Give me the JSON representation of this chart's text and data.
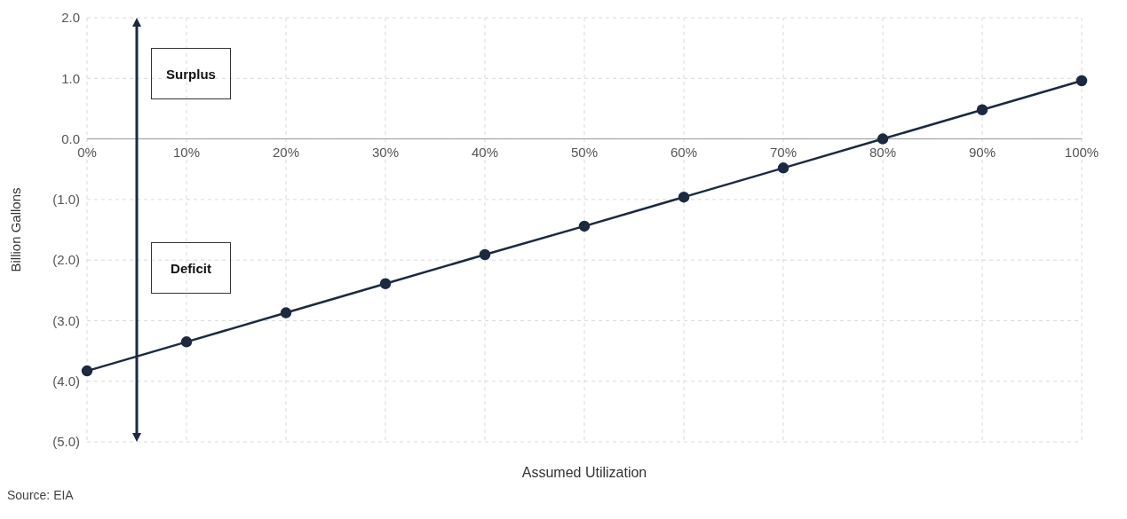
{
  "chart_data": {
    "type": "line",
    "xlabel": "Assumed Utilization",
    "ylabel": "Billion Gallons",
    "categories": [
      "0%",
      "10%",
      "20%",
      "30%",
      "40%",
      "50%",
      "60%",
      "70%",
      "80%",
      "90%",
      "100%"
    ],
    "series": [
      {
        "color": "#1b2a41",
        "values": [
          -3.83,
          -3.35,
          -2.87,
          -2.39,
          -1.91,
          -1.44,
          -0.96,
          -0.48,
          0,
          0.48,
          0.96
        ]
      }
    ],
    "ylim": [
      -5,
      2
    ],
    "yticks": [
      {
        "value": -5,
        "label": "(5.0)"
      },
      {
        "value": -4,
        "label": "(4.0)"
      },
      {
        "value": -3,
        "label": "(3.0)"
      },
      {
        "value": -2,
        "label": "(2.0)"
      },
      {
        "value": -1,
        "label": "(1.0)"
      },
      {
        "value": 0,
        "label": "0.0"
      },
      {
        "value": 1,
        "label": "1.0"
      },
      {
        "value": 2,
        "label": "2.0"
      }
    ],
    "grid": true,
    "marker": "circle",
    "line_style": "solid",
    "annotations": [
      "Surplus",
      "Deficit",
      "Source: EIA"
    ]
  }
}
